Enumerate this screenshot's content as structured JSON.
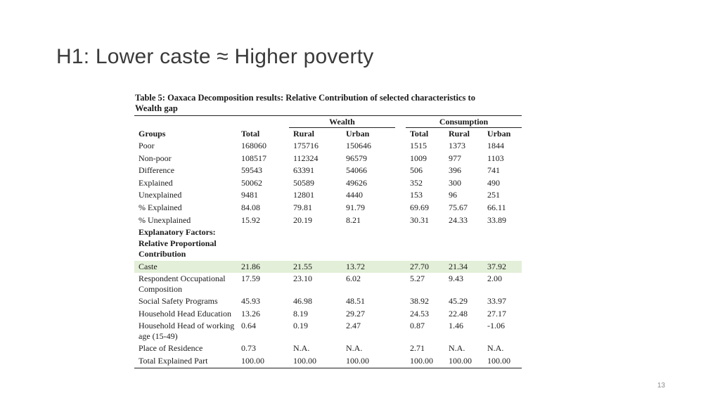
{
  "slide": {
    "title": "H1: Lower caste ≈ Higher poverty",
    "page_number": "13"
  },
  "table": {
    "caption_line1": "Table 5: Oaxaca Decomposition results: Relative Contribution of selected characteristics to",
    "caption_line2": "Wealth gap",
    "group_wealth": "Wealth",
    "group_consumption": "Consumption",
    "columns": [
      "Groups",
      "Total",
      "Rural",
      "Urban",
      "Total",
      "Rural",
      "Urban"
    ],
    "rows": [
      {
        "label": "Poor",
        "values": [
          "168060",
          "175716",
          "150646",
          "1515",
          "1373",
          "1844"
        ]
      },
      {
        "label": "Non-poor",
        "values": [
          "108517",
          "112324",
          "96579",
          "1009",
          "977",
          "1103"
        ]
      },
      {
        "label": "Difference",
        "values": [
          "59543",
          "63391",
          "54066",
          "506",
          "396",
          "741"
        ]
      },
      {
        "label": "Explained",
        "values": [
          "50062",
          "50589",
          "49626",
          "352",
          "300",
          "490"
        ]
      },
      {
        "label": "Unexplained",
        "values": [
          "9481",
          "12801",
          "4440",
          "153",
          "96",
          "251"
        ]
      },
      {
        "label": "% Explained",
        "values": [
          "84.08",
          "79.81",
          "91.79",
          "69.69",
          "75.67",
          "66.11"
        ]
      },
      {
        "label": "% Unexplained",
        "values": [
          "15.92",
          "20.19",
          "8.21",
          "30.31",
          "24.33",
          "33.89"
        ]
      }
    ],
    "factor_header": "Explanatory Factors: Relative Proportional Contribution",
    "factor_rows": [
      {
        "label": "Caste",
        "values": [
          "21.86",
          "21.55",
          "13.72",
          "27.70",
          "21.34",
          "37.92"
        ],
        "highlight": true
      },
      {
        "label": "Respondent Occupational Composition",
        "values": [
          "17.59",
          "23.10",
          "6.02",
          "5.27",
          "9.43",
          "2.00"
        ]
      },
      {
        "label": "Social Safety Programs",
        "values": [
          "45.93",
          "46.98",
          "48.51",
          "38.92",
          "45.29",
          "33.97"
        ]
      },
      {
        "label": "Household Head Education",
        "values": [
          "13.26",
          "8.19",
          "29.27",
          "24.53",
          "22.48",
          "27.17"
        ]
      },
      {
        "label": "Household Head of working age (15-49)",
        "values": [
          "0.64",
          "0.19",
          "2.47",
          "0.87",
          "1.46",
          "-1.06"
        ]
      },
      {
        "label": "Place of Residence",
        "values": [
          "0.73",
          "N.A.",
          "N.A.",
          "2.71",
          "N.A.",
          "N.A."
        ]
      },
      {
        "label": "Total Explained Part",
        "values": [
          "100.00",
          "100.00",
          "100.00",
          "100.00",
          "100.00",
          "100.00"
        ]
      }
    ],
    "highlight_color": "#e3efd8"
  }
}
